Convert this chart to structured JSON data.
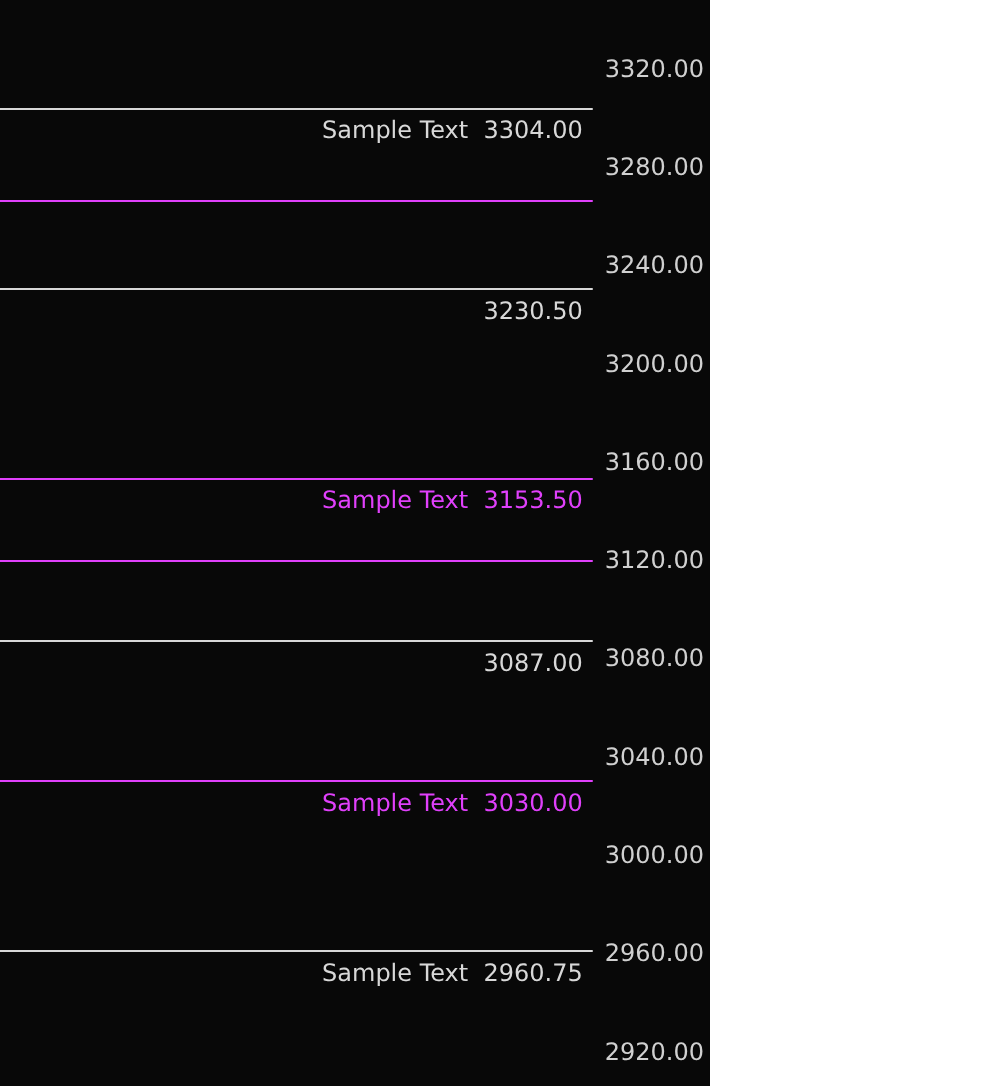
{
  "chart_data": {
    "type": "line",
    "categories": [
      null
    ],
    "ylim": [
      2906,
      3348
    ],
    "yticks": [
      {
        "value": 2920,
        "label": "2920.00"
      },
      {
        "value": 2960,
        "label": "2960.00"
      },
      {
        "value": 3000,
        "label": "3000.00"
      },
      {
        "value": 3040,
        "label": "3040.00"
      },
      {
        "value": 3080,
        "label": "3080.00"
      },
      {
        "value": 3120,
        "label": "3120.00"
      },
      {
        "value": 3160,
        "label": "3160.00"
      },
      {
        "value": 3200,
        "label": "3200.00"
      },
      {
        "value": 3240,
        "label": "3240.00"
      },
      {
        "value": 3280,
        "label": "3280.00"
      },
      {
        "value": 3320,
        "label": "3320.00"
      }
    ],
    "ref_lines": [
      {
        "axis": "y",
        "value": 3304,
        "label": "Sample Text  3304.00",
        "color": "#d8d8d8"
      },
      {
        "axis": "y",
        "value": 3266,
        "label": null,
        "color": "#e040fb"
      },
      {
        "axis": "y",
        "value": 3230.5,
        "label": "3230.50",
        "color": "#d8d8d8"
      },
      {
        "axis": "y",
        "value": 3153.5,
        "label": "Sample Text  3153.50",
        "color": "#e040fb"
      },
      {
        "axis": "y",
        "value": 3120,
        "label": null,
        "color": "#e040fb"
      },
      {
        "axis": "y",
        "value": 3087,
        "label": "3087.00",
        "color": "#d8d8d8"
      },
      {
        "axis": "y",
        "value": 3030,
        "label": "Sample Text  3030.00",
        "color": "#e040fb"
      },
      {
        "axis": "y",
        "value": 2960.75,
        "label": "Sample Text  2960.75",
        "color": "#d8d8d8"
      }
    ],
    "grid": false,
    "tick_labels": "y"
  }
}
